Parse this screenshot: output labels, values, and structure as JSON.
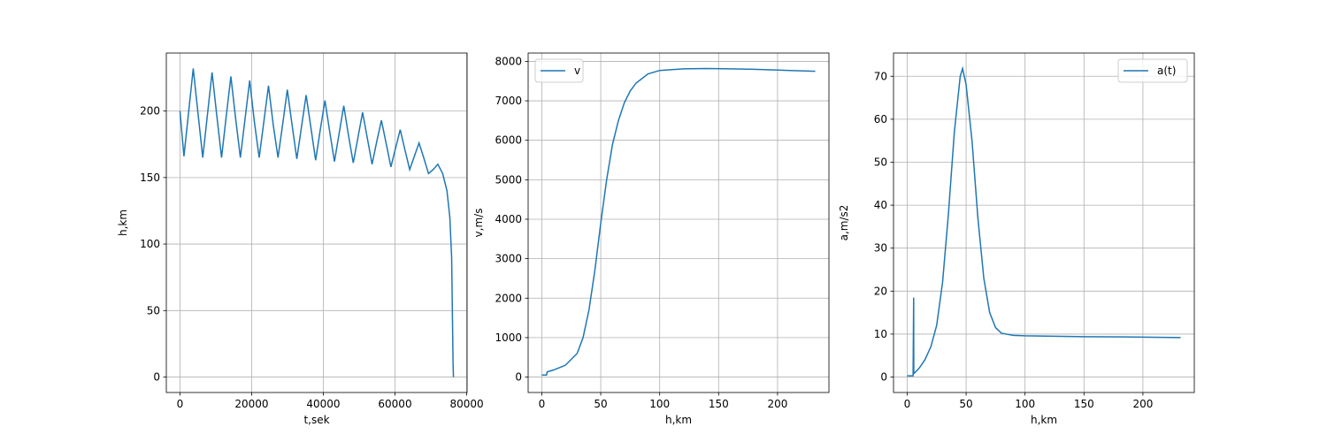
{
  "chart_data": [
    {
      "type": "line",
      "x_label": "t,sek",
      "y_label": "h,km",
      "grid": true,
      "color": "#1f77b4",
      "x": [
        0,
        1100,
        2400,
        3700,
        5000,
        6350,
        7650,
        8950,
        10250,
        11600,
        12900,
        14200,
        15500,
        16850,
        18150,
        19450,
        20750,
        22100,
        23400,
        24700,
        26000,
        27350,
        28650,
        29950,
        31250,
        32600,
        33900,
        35200,
        36500,
        37850,
        39150,
        40450,
        41750,
        43100,
        44400,
        45700,
        47000,
        48350,
        49650,
        50950,
        52250,
        53600,
        54900,
        56200,
        57500,
        58850,
        60150,
        61450,
        62750,
        64100,
        65400,
        66700,
        68000,
        69350,
        70650,
        71950,
        73300,
        74500,
        75300,
        75800,
        76000,
        76200,
        76300
      ],
      "values": [
        200,
        166,
        199,
        232,
        199,
        165,
        197,
        229,
        197,
        165,
        196,
        226,
        195,
        165,
        194,
        223,
        192,
        165,
        192,
        219,
        190,
        165,
        190,
        216,
        190,
        164,
        188,
        212,
        188,
        163,
        186,
        208,
        185,
        162,
        183,
        204,
        182,
        161,
        180,
        199,
        180,
        160,
        177,
        193,
        176,
        158,
        172,
        186,
        171,
        156,
        166,
        176,
        165,
        153,
        156,
        160,
        153,
        140,
        120,
        90,
        50,
        10,
        0
      ],
      "xlim": [
        -3815,
        80115
      ],
      "xticks": [
        0,
        20000,
        40000,
        60000,
        80000
      ],
      "ylim": [
        -11.6,
        243.6
      ],
      "yticks": [
        0,
        50,
        100,
        150,
        200
      ]
    },
    {
      "type": "line",
      "x_label": "h,km",
      "y_label": "v,m/s",
      "grid": true,
      "legend": "upper left",
      "x": [
        0,
        4,
        4.5,
        10,
        20,
        30,
        35,
        40,
        45,
        50,
        55,
        60,
        65,
        70,
        75,
        80,
        90,
        100,
        120,
        140,
        160,
        180,
        200,
        220,
        232
      ],
      "series": [
        {
          "name": "v",
          "color": "#1f77b4",
          "values": [
            50,
            50,
            130,
            180,
            300,
            600,
            1000,
            1700,
            2700,
            3900,
            5000,
            5900,
            6500,
            6950,
            7250,
            7450,
            7680,
            7770,
            7810,
            7820,
            7810,
            7800,
            7780,
            7760,
            7750
          ]
        }
      ],
      "xlim": [
        -11.6,
        243.6
      ],
      "xticks": [
        0,
        50,
        100,
        150,
        200
      ],
      "ylim": [
        -391,
        8211
      ],
      "yticks": [
        0,
        1000,
        2000,
        3000,
        4000,
        5000,
        6000,
        7000,
        8000
      ]
    },
    {
      "type": "line",
      "x_label": "h,km",
      "y_label": "a,m/s2",
      "grid": true,
      "legend": "upper right",
      "x": [
        0,
        5,
        5.5,
        5.6,
        10,
        15,
        20,
        25,
        30,
        35,
        40,
        45,
        47,
        50,
        55,
        60,
        65,
        70,
        75,
        80,
        90,
        100,
        150,
        200,
        232
      ],
      "series": [
        {
          "name": "a(t)",
          "color": "#1f77b4",
          "values": [
            0.3,
            0.3,
            18.5,
            0.8,
            2,
            4,
            7,
            12,
            22,
            38,
            57,
            70,
            71.8,
            68,
            55,
            37,
            23,
            15,
            11.5,
            10.2,
            9.7,
            9.6,
            9.4,
            9.3,
            9.2
          ]
        }
      ],
      "xlim": [
        -11.6,
        243.6
      ],
      "xticks": [
        0,
        50,
        100,
        150,
        200
      ],
      "ylim": [
        -3.59,
        75.4
      ],
      "yticks": [
        0,
        10,
        20,
        30,
        40,
        50,
        60,
        70
      ]
    }
  ]
}
